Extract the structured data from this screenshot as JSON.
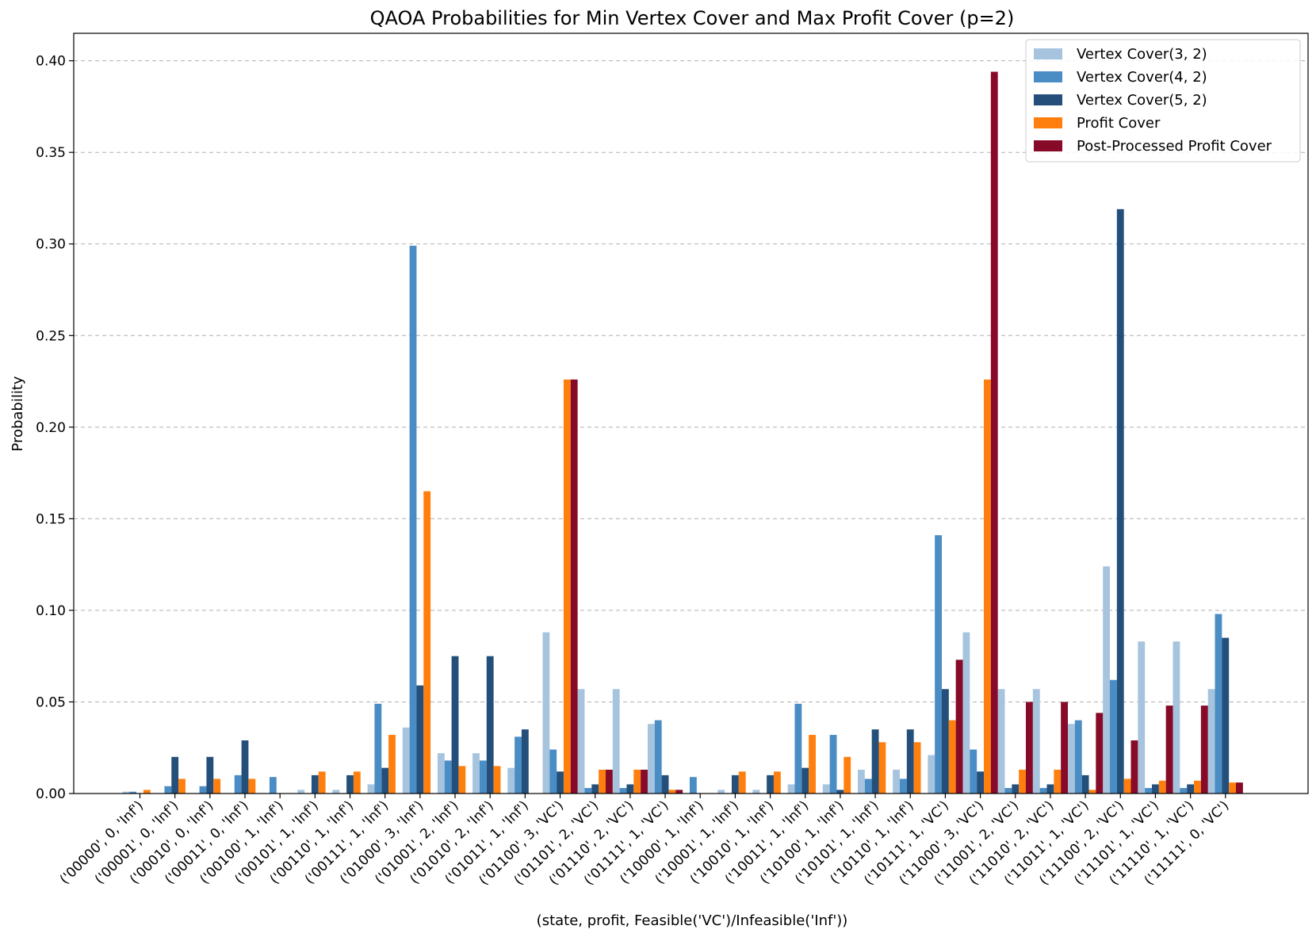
{
  "chart_data": {
    "type": "bar",
    "title": "QAOA Probabilities for Min Vertex Cover and Max Profit Cover (p=2)",
    "xlabel": "(state, profit, Feasible('VC')/Infeasible('Inf'))",
    "ylabel": "Probability",
    "ylim": [
      0,
      0.415
    ],
    "yticks": [
      0.0,
      0.05,
      0.1,
      0.15,
      0.2,
      0.25,
      0.3,
      0.35,
      0.4
    ],
    "ytick_labels": [
      "0.00",
      "0.05",
      "0.10",
      "0.15",
      "0.20",
      "0.25",
      "0.30",
      "0.35",
      "0.40"
    ],
    "grid": "y-dashed",
    "legend_position": "top-right",
    "categories": [
      "('00000', 0, 'Inf')",
      "('00001', 0, 'Inf')",
      "('00010', 0, 'Inf')",
      "('00011', 0, 'Inf')",
      "('00100', 1, 'Inf')",
      "('00101', 1, 'Inf')",
      "('00110', 1, 'Inf')",
      "('00111', 1, 'Inf')",
      "('01000', 3, 'Inf')",
      "('01001', 2, 'Inf')",
      "('01010', 2, 'Inf')",
      "('01011', 1, 'Inf')",
      "('01100', 3, 'VC')",
      "('01101', 2, 'VC')",
      "('01110', 2, 'VC')",
      "('01111', 1, 'VC')",
      "('10000', 1, 'Inf')",
      "('10001', 1, 'Inf')",
      "('10010', 1, 'Inf')",
      "('10011', 1, 'Inf')",
      "('10100', 1, 'Inf')",
      "('10101', 1, 'Inf')",
      "('10110', 1, 'Inf')",
      "('10111', 1, 'VC')",
      "('11000', 3, 'VC')",
      "('11001', 2, 'VC')",
      "('11010', 2, 'VC')",
      "('11011', 1, 'VC')",
      "('11100', 2, 'VC')",
      "('11101', 1, 'VC')",
      "('11110', 1, 'VC')",
      "('11111', 0, 'VC')"
    ],
    "series": [
      {
        "name": "Vertex Cover(3, 2)",
        "color": "#a6c4de",
        "values": [
          0.001,
          0,
          0,
          0,
          0,
          0.002,
          0.002,
          0.005,
          0.036,
          0.022,
          0.022,
          0.014,
          0.088,
          0.057,
          0.057,
          0.038,
          0,
          0.002,
          0.002,
          0.005,
          0.005,
          0.013,
          0.013,
          0.021,
          0.088,
          0.057,
          0.057,
          0.038,
          0.124,
          0.083,
          0.083,
          0.057
        ]
      },
      {
        "name": "Vertex Cover(4, 2)",
        "color": "#4a8cc4",
        "values": [
          0.001,
          0.004,
          0.004,
          0.01,
          0.009,
          0,
          0,
          0.049,
          0.299,
          0.018,
          0.018,
          0.031,
          0.024,
          0.003,
          0.003,
          0.04,
          0.009,
          0,
          0,
          0.049,
          0.032,
          0.008,
          0.008,
          0.141,
          0.024,
          0.003,
          0.003,
          0.04,
          0.062,
          0.003,
          0.003,
          0.098
        ]
      },
      {
        "name": "Vertex Cover(5, 2)",
        "color": "#234f7a",
        "values": [
          0,
          0.02,
          0.02,
          0.029,
          0,
          0.01,
          0.01,
          0.014,
          0.059,
          0.075,
          0.075,
          0.035,
          0.012,
          0.005,
          0.005,
          0.01,
          0,
          0.01,
          0.01,
          0.014,
          0.002,
          0.035,
          0.035,
          0.057,
          0.012,
          0.005,
          0.005,
          0.01,
          0.319,
          0.005,
          0.005,
          0.085
        ]
      },
      {
        "name": "Profit Cover",
        "color": "#ff7f0e",
        "values": [
          0.002,
          0.008,
          0.008,
          0.008,
          0,
          0.012,
          0.012,
          0.032,
          0.165,
          0.015,
          0.015,
          0,
          0.226,
          0.013,
          0.013,
          0.002,
          0,
          0.012,
          0.012,
          0.032,
          0.02,
          0.028,
          0.028,
          0.04,
          0.226,
          0.013,
          0.013,
          0.002,
          0.008,
          0.007,
          0.007,
          0.006
        ]
      },
      {
        "name": "Post-Processed Profit Cover",
        "color": "#870a28",
        "values": [
          0,
          0,
          0,
          0,
          0,
          0,
          0,
          0,
          0,
          0,
          0,
          0,
          0.226,
          0.013,
          0.013,
          0.002,
          0,
          0,
          0,
          0,
          0,
          0,
          0,
          0.073,
          0.394,
          0.05,
          0.05,
          0.044,
          0.029,
          0.048,
          0.048,
          0.006
        ]
      }
    ]
  }
}
